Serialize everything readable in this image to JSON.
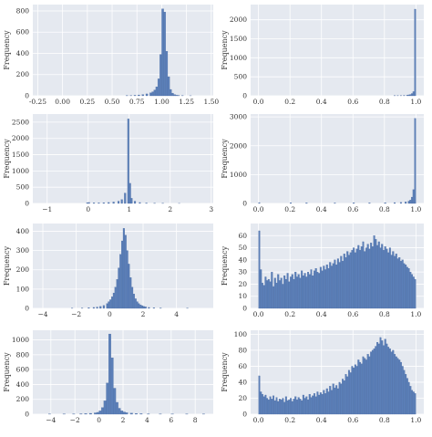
{
  "colors": {
    "panel_bg": "#e5e9f0",
    "grid": "#ffffff",
    "bar_fill": "#5b7fb8",
    "bar_stroke": "#4a6aa0",
    "text": "#333333"
  },
  "chart_data": [
    {
      "type": "bar",
      "title": "",
      "xlabel": "",
      "ylabel": "Frequency",
      "xlim": [
        -0.3,
        1.52
      ],
      "ylim": [
        0,
        860
      ],
      "grid": true,
      "x_ticks": [
        -0.25,
        0.0,
        0.25,
        0.5,
        0.75,
        1.0,
        1.25,
        1.5
      ],
      "x_tick_labels": [
        "-0.25",
        "0.00",
        "0.25",
        "0.50",
        "0.75",
        "1.00",
        "1.25",
        "1.50"
      ],
      "y_ticks": [
        0,
        200,
        400,
        600,
        800
      ],
      "y_tick_labels": [
        "0",
        "200",
        "400",
        "600",
        "800"
      ],
      "bin_width": 0.02,
      "bins": [
        [
          0.64,
          2
        ],
        [
          0.68,
          3
        ],
        [
          0.72,
          5
        ],
        [
          0.76,
          8
        ],
        [
          0.8,
          12
        ],
        [
          0.84,
          18
        ],
        [
          0.88,
          28
        ],
        [
          0.9,
          38
        ],
        [
          0.92,
          55
        ],
        [
          0.94,
          85
        ],
        [
          0.96,
          160
        ],
        [
          0.98,
          390
        ],
        [
          1.0,
          820
        ],
        [
          1.02,
          790
        ],
        [
          1.04,
          420
        ],
        [
          1.06,
          180
        ],
        [
          1.08,
          60
        ],
        [
          1.1,
          25
        ],
        [
          1.12,
          12
        ],
        [
          1.14,
          6
        ],
        [
          1.16,
          4
        ],
        [
          1.2,
          2
        ],
        [
          1.28,
          1
        ]
      ]
    },
    {
      "type": "bar",
      "title": "",
      "xlabel": "",
      "ylabel": "Frequency",
      "xlim": [
        -0.05,
        1.05
      ],
      "ylim": [
        0,
        2400
      ],
      "grid": true,
      "x_ticks": [
        0.0,
        0.2,
        0.4,
        0.6,
        0.8,
        1.0
      ],
      "x_tick_labels": [
        "0.0",
        "0.2",
        "0.4",
        "0.6",
        "0.8",
        "1.0"
      ],
      "y_ticks": [
        0,
        500,
        1000,
        1500,
        2000
      ],
      "y_tick_labels": [
        "0",
        "500",
        "1000",
        "1500",
        "2000"
      ],
      "bin_width": 0.01,
      "bins": [
        [
          0.86,
          4
        ],
        [
          0.88,
          6
        ],
        [
          0.9,
          8
        ],
        [
          0.92,
          12
        ],
        [
          0.94,
          18
        ],
        [
          0.95,
          25
        ],
        [
          0.96,
          35
        ],
        [
          0.97,
          60
        ],
        [
          0.98,
          110
        ],
        [
          0.99,
          2280
        ]
      ]
    },
    {
      "type": "bar",
      "title": "",
      "xlabel": "",
      "ylabel": "Frequency",
      "xlim": [
        -1.35,
        3.05
      ],
      "ylim": [
        0,
        2750
      ],
      "grid": true,
      "x_ticks": [
        -1,
        0,
        1,
        2,
        3
      ],
      "x_tick_labels": [
        "−1",
        "0",
        "1",
        "2",
        "3"
      ],
      "y_ticks": [
        0,
        500,
        1000,
        1500,
        2000,
        2500
      ],
      "y_tick_labels": [
        "0",
        "500",
        "1000",
        "1500",
        "2000",
        "2500"
      ],
      "bin_width": 0.04,
      "bins": [
        [
          -0.04,
          25
        ],
        [
          0.0,
          30
        ],
        [
          0.12,
          18
        ],
        [
          0.24,
          20
        ],
        [
          0.36,
          25
        ],
        [
          0.48,
          30
        ],
        [
          0.6,
          45
        ],
        [
          0.72,
          70
        ],
        [
          0.8,
          120
        ],
        [
          0.88,
          320
        ],
        [
          0.96,
          2600
        ],
        [
          1.0,
          620
        ],
        [
          1.04,
          160
        ],
        [
          1.12,
          70
        ],
        [
          1.24,
          30
        ],
        [
          1.4,
          15
        ],
        [
          1.6,
          8
        ],
        [
          1.8,
          5
        ],
        [
          2.2,
          3
        ]
      ]
    },
    {
      "type": "bar",
      "title": "",
      "xlabel": "",
      "ylabel": "Frequency",
      "xlim": [
        -0.05,
        1.05
      ],
      "ylim": [
        0,
        3100
      ],
      "grid": true,
      "x_ticks": [
        0.0,
        0.2,
        0.4,
        0.6,
        0.8,
        1.0
      ],
      "x_tick_labels": [
        "0.0",
        "0.2",
        "0.4",
        "0.6",
        "0.8",
        "1.0"
      ],
      "y_ticks": [
        0,
        1000,
        2000,
        3000
      ],
      "y_tick_labels": [
        "0",
        "1000",
        "2000",
        "3000"
      ],
      "bin_width": 0.01,
      "bins": [
        [
          0.0,
          30
        ],
        [
          0.2,
          25
        ],
        [
          0.3,
          20
        ],
        [
          0.48,
          18
        ],
        [
          0.6,
          22
        ],
        [
          0.7,
          20
        ],
        [
          0.8,
          25
        ],
        [
          0.86,
          30
        ],
        [
          0.9,
          40
        ],
        [
          0.93,
          55
        ],
        [
          0.95,
          80
        ],
        [
          0.96,
          120
        ],
        [
          0.97,
          220
        ],
        [
          0.98,
          480
        ],
        [
          0.99,
          2950
        ]
      ]
    },
    {
      "type": "bar",
      "title": "",
      "xlabel": "",
      "ylabel": "Frequency",
      "xlim": [
        -4.6,
        6.2
      ],
      "ylim": [
        0,
        440
      ],
      "grid": true,
      "x_ticks": [
        -4,
        -2,
        0,
        2,
        4
      ],
      "x_tick_labels": [
        "−4",
        "−2",
        "0",
        "2",
        "4"
      ],
      "y_ticks": [
        0,
        100,
        200,
        300,
        400
      ],
      "y_tick_labels": [
        "0",
        "100",
        "200",
        "300",
        "400"
      ],
      "bin_width": 0.1,
      "bins": [
        [
          -2.3,
          1
        ],
        [
          -1.7,
          2
        ],
        [
          -1.3,
          4
        ],
        [
          -1.0,
          5
        ],
        [
          -0.8,
          7
        ],
        [
          -0.6,
          10
        ],
        [
          -0.4,
          15
        ],
        [
          -0.2,
          25
        ],
        [
          -0.1,
          35
        ],
        [
          0.0,
          45
        ],
        [
          0.1,
          60
        ],
        [
          0.2,
          80
        ],
        [
          0.3,
          110
        ],
        [
          0.4,
          150
        ],
        [
          0.5,
          210
        ],
        [
          0.6,
          280
        ],
        [
          0.7,
          350
        ],
        [
          0.8,
          415
        ],
        [
          0.9,
          380
        ],
        [
          1.0,
          300
        ],
        [
          1.1,
          230
        ],
        [
          1.2,
          160
        ],
        [
          1.3,
          110
        ],
        [
          1.4,
          75
        ],
        [
          1.5,
          50
        ],
        [
          1.6,
          35
        ],
        [
          1.7,
          25
        ],
        [
          1.8,
          18
        ],
        [
          1.9,
          14
        ],
        [
          2.0,
          10
        ],
        [
          2.1,
          8
        ],
        [
          2.3,
          5
        ],
        [
          2.6,
          3
        ],
        [
          3.0,
          2
        ],
        [
          4.6,
          1
        ]
      ]
    },
    {
      "type": "bar",
      "title": "",
      "xlabel": "",
      "ylabel": "Frequency",
      "xlim": [
        -0.05,
        1.05
      ],
      "ylim": [
        0,
        70
      ],
      "grid": true,
      "x_ticks": [
        0.0,
        0.2,
        0.4,
        0.6,
        0.8,
        1.0
      ],
      "x_tick_labels": [
        "0.0",
        "0.2",
        "0.4",
        "0.6",
        "0.8",
        "1.0"
      ],
      "y_ticks": [
        0,
        10,
        20,
        30,
        40,
        50,
        60
      ],
      "y_tick_labels": [
        "0",
        "10",
        "20",
        "30",
        "40",
        "50",
        "60"
      ],
      "bin_width": 0.01,
      "values": [
        64,
        32,
        21,
        19,
        26,
        23,
        24,
        22,
        30,
        18,
        25,
        21,
        28,
        23,
        25,
        20,
        27,
        24,
        29,
        22,
        26,
        28,
        24,
        30,
        26,
        28,
        25,
        31,
        27,
        29,
        26,
        30,
        28,
        32,
        27,
        31,
        33,
        30,
        29,
        34,
        31,
        35,
        32,
        36,
        33,
        38,
        35,
        37,
        40,
        36,
        41,
        38,
        43,
        39,
        45,
        42,
        47,
        44,
        46,
        48,
        50,
        46,
        49,
        52,
        48,
        51,
        55,
        47,
        50,
        53,
        49,
        54,
        51,
        60,
        57,
        52,
        55,
        50,
        53,
        48,
        51,
        49,
        46,
        50,
        44,
        47,
        43,
        45,
        41,
        42,
        39,
        40,
        37,
        36,
        34,
        33,
        30,
        28,
        26,
        24
      ]
    },
    {
      "type": "bar",
      "title": "",
      "xlabel": "",
      "ylabel": "Frequency",
      "xlim": [
        -5.5,
        9.5
      ],
      "ylim": [
        0,
        1130
      ],
      "grid": true,
      "x_ticks": [
        -4,
        -2,
        0,
        2,
        4,
        6,
        8
      ],
      "x_tick_labels": [
        "−4",
        "−2",
        "0",
        "2",
        "4",
        "6",
        "8"
      ],
      "y_ticks": [
        0,
        200,
        400,
        600,
        800,
        1000
      ],
      "y_tick_labels": [
        "0",
        "200",
        "400",
        "600",
        "800",
        "1000"
      ],
      "bin_width": 0.2,
      "bins": [
        [
          -4.2,
          2
        ],
        [
          -3.0,
          3
        ],
        [
          -2.2,
          4
        ],
        [
          -1.6,
          6
        ],
        [
          -1.2,
          8
        ],
        [
          -0.8,
          12
        ],
        [
          -0.4,
          18
        ],
        [
          -0.2,
          25
        ],
        [
          0.0,
          45
        ],
        [
          0.2,
          90
        ],
        [
          0.4,
          180
        ],
        [
          0.6,
          420
        ],
        [
          0.8,
          1080
        ],
        [
          1.0,
          760
        ],
        [
          1.2,
          350
        ],
        [
          1.4,
          160
        ],
        [
          1.6,
          80
        ],
        [
          1.8,
          45
        ],
        [
          2.0,
          30
        ],
        [
          2.2,
          20
        ],
        [
          2.6,
          14
        ],
        [
          3.0,
          10
        ],
        [
          3.4,
          7
        ],
        [
          4.0,
          5
        ],
        [
          5.0,
          3
        ],
        [
          6.0,
          2
        ],
        [
          7.2,
          2
        ],
        [
          8.6,
          2
        ]
      ]
    },
    {
      "type": "bar",
      "title": "",
      "xlabel": "",
      "ylabel": "Frequency",
      "xlim": [
        -0.05,
        1.05
      ],
      "ylim": [
        0,
        105
      ],
      "grid": true,
      "x_ticks": [
        0.0,
        0.2,
        0.4,
        0.6,
        0.8,
        1.0
      ],
      "x_tick_labels": [
        "0.0",
        "0.2",
        "0.4",
        "0.6",
        "0.8",
        "1.0"
      ],
      "y_ticks": [
        0,
        20,
        40,
        60,
        80,
        100
      ],
      "y_tick_labels": [
        "0",
        "20",
        "40",
        "60",
        "80",
        "100"
      ],
      "bin_width": 0.01,
      "values": [
        48,
        28,
        25,
        22,
        24,
        20,
        18,
        22,
        19,
        23,
        17,
        21,
        16,
        19,
        18,
        20,
        15,
        22,
        17,
        18,
        20,
        16,
        19,
        22,
        18,
        21,
        19,
        17,
        24,
        20,
        22,
        18,
        25,
        21,
        23,
        26,
        22,
        28,
        24,
        27,
        25,
        30,
        26,
        32,
        28,
        35,
        30,
        38,
        33,
        36,
        32,
        40,
        38,
        44,
        42,
        50,
        47,
        55,
        52,
        60,
        58,
        62,
        60,
        68,
        65,
        63,
        72,
        70,
        68,
        75,
        72,
        78,
        80,
        82,
        85,
        90,
        88,
        96,
        92,
        86,
        94,
        88,
        84,
        82,
        78,
        80,
        75,
        72,
        70,
        68,
        65,
        60,
        55,
        50,
        45,
        40,
        35,
        30,
        28,
        26
      ]
    }
  ]
}
